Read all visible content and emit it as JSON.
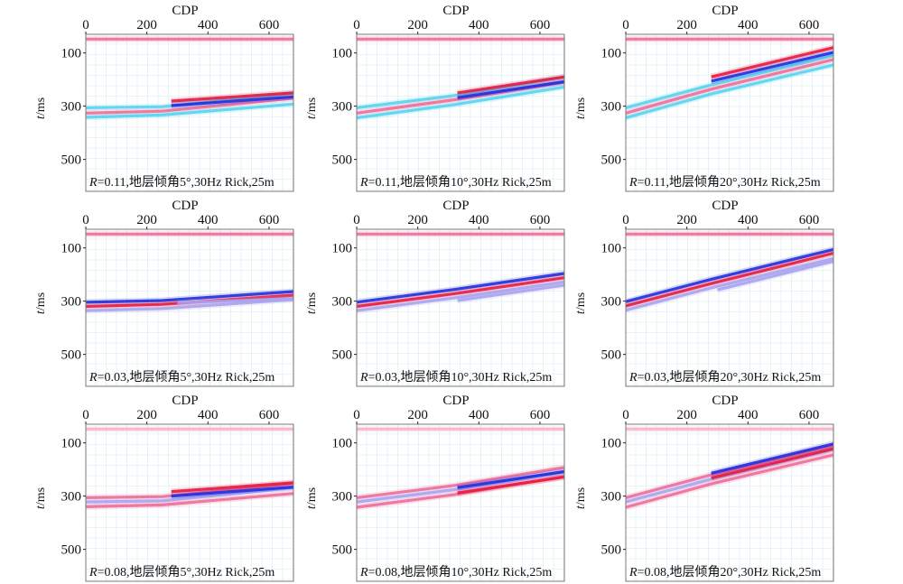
{
  "figure": {
    "xlabel": "CDP",
    "ylabel_prefix": "t",
    "ylabel_suffix": "/ms",
    "x_ticks": [
      0,
      200,
      400,
      600
    ],
    "y_ticks": [
      100,
      300,
      500
    ]
  },
  "colors": {
    "red": "#e8183f",
    "blue": "#1f2ee0",
    "pink": "#f06c98",
    "light_pink": "#f7b3ca",
    "cyan": "#57d3f0",
    "lavender": "#a9a3ee",
    "grid": "#d4e9f3",
    "panel_border": "#7a7a7a"
  },
  "panels": [
    {
      "caption_italic": "R",
      "caption_text": "=0.11,地层倾角5°,30Hz Rick,25m",
      "R": 0.11,
      "dip_deg": 5,
      "freq": "30Hz",
      "wavelet": "Rick",
      "spacing": "25m",
      "palette": "cyan"
    },
    {
      "caption_italic": "R",
      "caption_text": "=0.11,地层倾角10°,30Hz Rick,25m",
      "R": 0.11,
      "dip_deg": 10,
      "freq": "30Hz",
      "wavelet": "Rick",
      "spacing": "25m",
      "palette": "cyan"
    },
    {
      "caption_italic": "R",
      "caption_text": "=0.11,地层倾角20°,30Hz Rick,25m",
      "R": 0.11,
      "dip_deg": 20,
      "freq": "30Hz",
      "wavelet": "Rick",
      "spacing": "25m",
      "palette": "cyan"
    },
    {
      "caption_italic": "R",
      "caption_text": "=0.03,地层倾角5°,30Hz Rick,25m",
      "R": 0.03,
      "dip_deg": 5,
      "freq": "30Hz",
      "wavelet": "Rick",
      "spacing": "25m",
      "palette": "lavender"
    },
    {
      "caption_italic": "R",
      "caption_text": "=0.03,地层倾角10°,30Hz Rick,25m",
      "R": 0.03,
      "dip_deg": 10,
      "freq": "30Hz",
      "wavelet": "Rick",
      "spacing": "25m",
      "palette": "lavender"
    },
    {
      "caption_italic": "R",
      "caption_text": "=0.03,地层倾角20°,30Hz Rick,25m",
      "R": 0.03,
      "dip_deg": 20,
      "freq": "30Hz",
      "wavelet": "Rick",
      "spacing": "25m",
      "palette": "lavender"
    },
    {
      "caption_italic": "R",
      "caption_text": "=0.08,地层倾角5°,30Hz Rick,25m",
      "R": 0.08,
      "dip_deg": 5,
      "freq": "30Hz",
      "wavelet": "Rick",
      "spacing": "25m",
      "palette": "lavender"
    },
    {
      "caption_italic": "R",
      "caption_text": "=0.08,地层倾角10°,30Hz Rick,25m",
      "R": 0.08,
      "dip_deg": 10,
      "freq": "30Hz",
      "wavelet": "Rick",
      "spacing": "25m",
      "palette": "lavender"
    },
    {
      "caption_italic": "R",
      "caption_text": "=0.08,地层倾角20°,30Hz Rick,25m",
      "R": 0.08,
      "dip_deg": 20,
      "freq": "30Hz",
      "wavelet": "Rick",
      "spacing": "25m",
      "palette": "lavender"
    }
  ],
  "chart_data": [
    {
      "type": "line",
      "title": "",
      "xlabel": "CDP",
      "ylabel": "t/ms",
      "xlim": [
        0,
        680
      ],
      "ylim": [
        620,
        30
      ],
      "y_inverted": true,
      "grid": true,
      "legend": "none",
      "series": [
        {
          "color": "pink",
          "x": [
            0,
            680
          ],
          "values": [
            48,
            48
          ]
        },
        {
          "color": "cyan",
          "x": [
            0,
            250,
            680
          ],
          "values": [
            306,
            302,
            252
          ]
        },
        {
          "color": "pink",
          "x": [
            0,
            250,
            680
          ],
          "values": [
            326,
            319,
            270
          ]
        },
        {
          "color": "cyan",
          "x": [
            0,
            250,
            680
          ],
          "values": [
            342,
            333,
            292
          ]
        },
        {
          "color": "blue",
          "x": [
            280,
            680
          ],
          "values": [
            298,
            265
          ]
        },
        {
          "color": "red",
          "x": [
            280,
            680
          ],
          "values": [
            281,
            250
          ]
        }
      ]
    },
    {
      "type": "line",
      "title": "",
      "xlabel": "CDP",
      "ylabel": "t/ms",
      "xlim": [
        0,
        680
      ],
      "ylim": [
        620,
        30
      ],
      "y_inverted": true,
      "grid": true,
      "legend": "none",
      "series": [
        {
          "color": "pink",
          "x": [
            0,
            680
          ],
          "values": [
            48,
            48
          ]
        },
        {
          "color": "cyan",
          "x": [
            0,
            320,
            680
          ],
          "values": [
            306,
            260,
            190
          ]
        },
        {
          "color": "pink",
          "x": [
            0,
            320,
            680
          ],
          "values": [
            326,
            276,
            210
          ]
        },
        {
          "color": "cyan",
          "x": [
            0,
            320,
            680
          ],
          "values": [
            344,
            294,
            228
          ]
        },
        {
          "color": "blue",
          "x": [
            330,
            680
          ],
          "values": [
            268,
            208
          ]
        },
        {
          "color": "red",
          "x": [
            330,
            680
          ],
          "values": [
            250,
            190
          ]
        }
      ]
    },
    {
      "type": "line",
      "title": "",
      "xlabel": "CDP",
      "ylabel": "t/ms",
      "xlim": [
        0,
        680
      ],
      "ylim": [
        620,
        30
      ],
      "y_inverted": true,
      "grid": true,
      "legend": "none",
      "series": [
        {
          "color": "pink",
          "x": [
            0,
            680
          ],
          "values": [
            48,
            48
          ]
        },
        {
          "color": "cyan",
          "x": [
            0,
            280,
            680
          ],
          "values": [
            306,
            220,
            110
          ]
        },
        {
          "color": "pink",
          "x": [
            0,
            280,
            680
          ],
          "values": [
            326,
            236,
            125
          ]
        },
        {
          "color": "cyan",
          "x": [
            0,
            280,
            680
          ],
          "values": [
            344,
            254,
            145
          ]
        },
        {
          "color": "blue",
          "x": [
            280,
            680
          ],
          "values": [
            206,
            98
          ]
        },
        {
          "color": "red",
          "x": [
            280,
            680
          ],
          "values": [
            190,
            80
          ]
        }
      ]
    },
    {
      "type": "line",
      "title": "",
      "xlabel": "CDP",
      "ylabel": "t/ms",
      "xlim": [
        0,
        680
      ],
      "ylim": [
        620,
        30
      ],
      "y_inverted": true,
      "grid": true,
      "legend": "none",
      "series": [
        {
          "color": "pink",
          "x": [
            0,
            680
          ],
          "values": [
            48,
            48
          ]
        },
        {
          "color": "blue",
          "x": [
            0,
            250,
            680
          ],
          "values": [
            304,
            298,
            264
          ]
        },
        {
          "color": "red",
          "x": [
            0,
            250,
            680
          ],
          "values": [
            320,
            312,
            278
          ]
        },
        {
          "color": "lavender",
          "x": [
            0,
            250,
            680
          ],
          "values": [
            336,
            328,
            294
          ]
        },
        {
          "color": "lavender",
          "x": [
            300,
            680
          ],
          "values": [
            306,
            290
          ]
        }
      ]
    },
    {
      "type": "line",
      "title": "",
      "xlabel": "CDP",
      "ylabel": "t/ms",
      "xlim": [
        0,
        680
      ],
      "ylim": [
        620,
        30
      ],
      "y_inverted": true,
      "grid": true,
      "legend": "none",
      "series": [
        {
          "color": "pink",
          "x": [
            0,
            680
          ],
          "values": [
            48,
            48
          ]
        },
        {
          "color": "blue",
          "x": [
            0,
            320,
            680
          ],
          "values": [
            304,
            256,
            196
          ]
        },
        {
          "color": "red",
          "x": [
            0,
            320,
            680
          ],
          "values": [
            320,
            272,
            212
          ]
        },
        {
          "color": "lavender",
          "x": [
            0,
            320,
            680
          ],
          "values": [
            336,
            288,
            228
          ]
        },
        {
          "color": "lavender",
          "x": [
            330,
            680
          ],
          "values": [
            298,
            240
          ]
        }
      ]
    },
    {
      "type": "line",
      "title": "",
      "xlabel": "CDP",
      "ylabel": "t/ms",
      "xlim": [
        0,
        680
      ],
      "ylim": [
        620,
        30
      ],
      "y_inverted": true,
      "grid": true,
      "legend": "none",
      "series": [
        {
          "color": "pink",
          "x": [
            0,
            680
          ],
          "values": [
            48,
            48
          ]
        },
        {
          "color": "blue",
          "x": [
            0,
            280,
            680
          ],
          "values": [
            302,
            218,
            106
          ]
        },
        {
          "color": "red",
          "x": [
            0,
            280,
            680
          ],
          "values": [
            318,
            234,
            120
          ]
        },
        {
          "color": "lavender",
          "x": [
            0,
            280,
            680
          ],
          "values": [
            334,
            250,
            140
          ]
        },
        {
          "color": "lavender",
          "x": [
            300,
            680
          ],
          "values": [
            258,
            150
          ]
        }
      ]
    },
    {
      "type": "line",
      "title": "",
      "xlabel": "CDP",
      "ylabel": "t/ms",
      "xlim": [
        0,
        680
      ],
      "ylim": [
        620,
        30
      ],
      "y_inverted": true,
      "grid": true,
      "legend": "none",
      "series": [
        {
          "color": "light_pink",
          "x": [
            0,
            680
          ],
          "values": [
            48,
            48
          ]
        },
        {
          "color": "pink",
          "x": [
            0,
            250,
            680
          ],
          "values": [
            306,
            302,
            252
          ]
        },
        {
          "color": "lavender",
          "x": [
            0,
            250,
            680
          ],
          "values": [
            322,
            318,
            268
          ]
        },
        {
          "color": "pink",
          "x": [
            0,
            250,
            680
          ],
          "values": [
            340,
            333,
            290
          ]
        },
        {
          "color": "blue",
          "x": [
            280,
            680
          ],
          "values": [
            300,
            266
          ]
        },
        {
          "color": "red",
          "x": [
            280,
            680
          ],
          "values": [
            283,
            250
          ]
        }
      ]
    },
    {
      "type": "line",
      "title": "",
      "xlabel": "CDP",
      "ylabel": "t/ms",
      "xlim": [
        0,
        680
      ],
      "ylim": [
        620,
        30
      ],
      "y_inverted": true,
      "grid": true,
      "legend": "none",
      "series": [
        {
          "color": "light_pink",
          "x": [
            0,
            680
          ],
          "values": [
            48,
            48
          ]
        },
        {
          "color": "pink",
          "x": [
            0,
            320,
            680
          ],
          "values": [
            306,
            260,
            192
          ]
        },
        {
          "color": "lavender",
          "x": [
            0,
            320,
            680
          ],
          "values": [
            322,
            276,
            208
          ]
        },
        {
          "color": "pink",
          "x": [
            0,
            320,
            680
          ],
          "values": [
            342,
            294,
            226
          ]
        },
        {
          "color": "blue",
          "x": [
            330,
            680
          ],
          "values": [
            268,
            208
          ]
        },
        {
          "color": "red",
          "x": [
            330,
            680
          ],
          "values": [
            288,
            228
          ]
        }
      ]
    },
    {
      "type": "line",
      "title": "",
      "xlabel": "CDP",
      "ylabel": "t/ms",
      "xlim": [
        0,
        680
      ],
      "ylim": [
        620,
        30
      ],
      "y_inverted": true,
      "grid": true,
      "legend": "none",
      "series": [
        {
          "color": "light_pink",
          "x": [
            0,
            680
          ],
          "values": [
            48,
            48
          ]
        },
        {
          "color": "pink",
          "x": [
            0,
            280,
            680
          ],
          "values": [
            306,
            220,
            110
          ]
        },
        {
          "color": "lavender",
          "x": [
            0,
            280,
            680
          ],
          "values": [
            322,
            236,
            125
          ]
        },
        {
          "color": "pink",
          "x": [
            0,
            280,
            680
          ],
          "values": [
            342,
            254,
            145
          ]
        },
        {
          "color": "blue",
          "x": [
            280,
            680
          ],
          "values": [
            214,
            104
          ]
        },
        {
          "color": "red",
          "x": [
            280,
            680
          ],
          "values": [
            232,
            122
          ]
        }
      ]
    }
  ]
}
